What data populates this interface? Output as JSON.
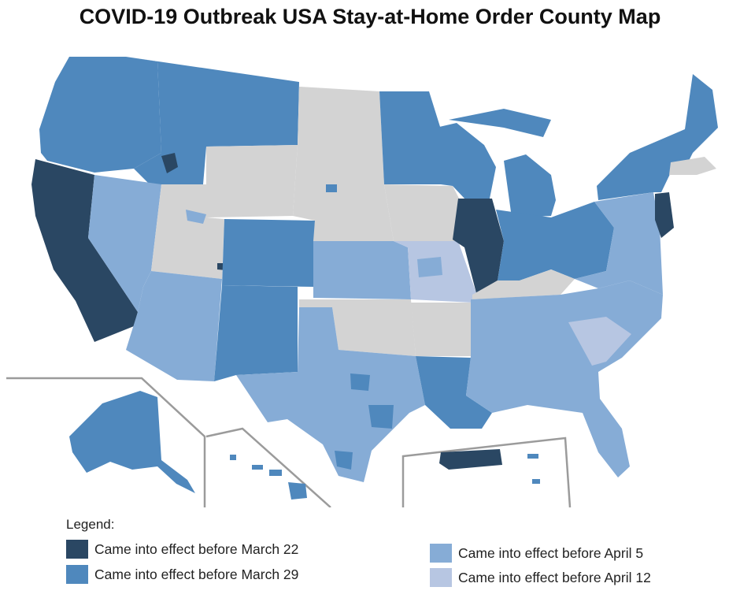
{
  "title": "COVID-19 Outbreak USA Stay-at-Home Order County Map",
  "colors": {
    "before_march_22": "#2a4763",
    "before_march_29": "#4f88bd",
    "before_april_5": "#86acd6",
    "before_april_12": "#b7c6e2",
    "no_order": "#d3d3d3",
    "inset_border": "#9b9b9b"
  },
  "legend": {
    "heading": "Legend:",
    "items": [
      {
        "label": "Came into effect before March 22",
        "color": "#2a4763"
      },
      {
        "label": "Came into effect before March 29",
        "color": "#4f88bd"
      },
      {
        "label": "Came into effect before April 5",
        "color": "#86acd6"
      },
      {
        "label": "Came into effect before April 12",
        "color": "#b7c6e2"
      }
    ]
  }
}
